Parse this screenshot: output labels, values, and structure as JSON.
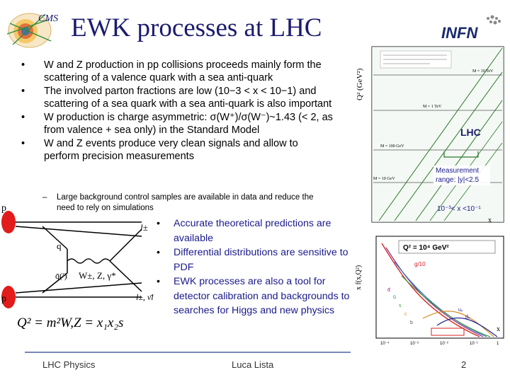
{
  "slide": {
    "title": "EWK processes at LHC",
    "bullets": [
      "W and Z production in pp collisions proceeds mainly form the scattering of a valence quark with a sea anti-quark",
      "The involved parton fractions are low (10−3 < x < 10−1) and scattering of a sea quark with a sea anti-quark is also important",
      "W production is charge asymmetric: σ(W⁺)/σ(W⁻)~1.43 (< 2, as from valence + sea only) in the Standard Model",
      "W and Z events produce very clean signals and allow to perform precision measurements"
    ],
    "sub_bullet": "Large background control samples are available in data and reduce the need to rely on simulations",
    "right_bullets": [
      "Accurate theoretical predictions are available",
      "Differential distributions are sensitive to PDF",
      "EWK processes are also a tool for detector calibration and backgrounds to searches for Higgs and new physics"
    ],
    "feynman": {
      "p_top": "p",
      "p_bottom": "p",
      "q": "q",
      "qbar": "q̄(′)",
      "boson": "W±, Z, γ*",
      "lepton_top": "l±",
      "lepton_bottom": "l±, ν̄l",
      "formula": "Q² = m²W,Z = x₁x₂s"
    },
    "kinematic_plot": {
      "y_axis": "Q² (GeV²)",
      "lhc_label": "LHC",
      "annotation_1": "Measurement",
      "annotation_2": "range: |y|<2.5",
      "x_range_label": "10⁻³< x <10⁻¹",
      "x_axis": "x",
      "mass_labels": [
        "M = 10 TeV",
        "M = 1 TeV",
        "M = 100 GeV",
        "M = 10 GeV"
      ]
    },
    "pdf_plot": {
      "y_axis": "x f(x,Q²)",
      "q2_label": "Q² = 10⁴ GeV²",
      "x_axis": "x",
      "labels": [
        "g/10",
        "uᵥ",
        "dᵥ",
        "d̄",
        "ū",
        "s",
        "c",
        "b"
      ],
      "ticks": [
        "10⁻⁴",
        "10⁻³",
        "10⁻²",
        "10⁻¹",
        "1"
      ]
    },
    "footer": {
      "left": "LHC Physics",
      "center": "Luca Lista",
      "page": "2"
    },
    "logos": {
      "infn": "INFN",
      "cms": "CMS"
    }
  }
}
